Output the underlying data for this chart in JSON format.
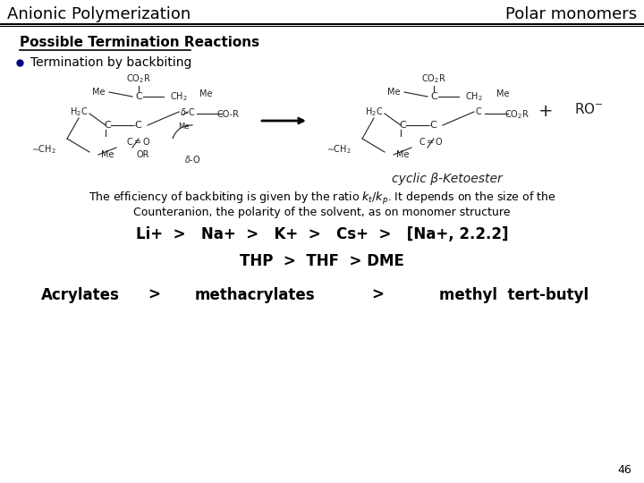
{
  "title_left": "Anionic Polymerization",
  "title_right": "Polar monomers",
  "section_title": "Possible Termination Reactions",
  "bullet_text": "Termination by backbiting",
  "efficiency_line1": "The efficiency of backbiting is given by the ratio $k_t$/$k_p$. It depends on the size of the",
  "efficiency_line2": "Counteranion, the polarity of the solvent, as on monomer structure",
  "cation_series": "Li+  >   Na+  >   K+  >   Cs+  >   [Na+, 2.2.2]",
  "solvent_series": "THP  >  THF  > DME",
  "acrylate_1": "Acrylates",
  "acrylate_2": ">",
  "acrylate_3": "methacrylates",
  "acrylate_4": ">",
  "acrylate_5": "methyl  tert-butyl",
  "page_number": "46",
  "background_color": "#ffffff",
  "text_color": "#000000",
  "bullet_color": "#000080",
  "line_color": "#000000",
  "cyclic_label": "cyclic β-Ketoester",
  "struct_color": "#222222"
}
